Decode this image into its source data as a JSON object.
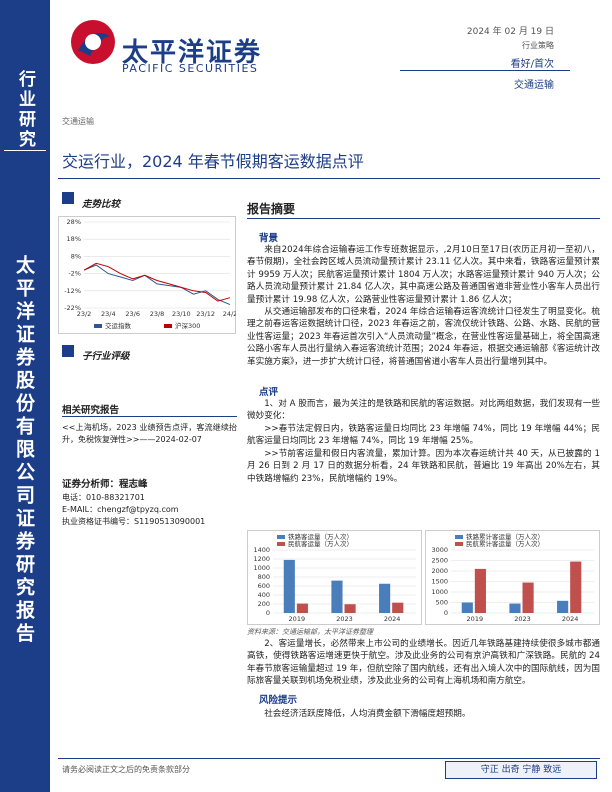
{
  "sidebar": {
    "category": "行业研究",
    "company": "太平洋证券股份有限公司证券研究报告"
  },
  "header": {
    "logo_cn": "太平洋证券",
    "logo_en": "PACIFIC SECURITIES",
    "date": "2024 年 02 月 19 日",
    "report_type": "行业策略",
    "rating": "看好/首次",
    "industry": "交通运输"
  },
  "section_tag": "交通运输",
  "title": "交运行业，2024 年春节假期客运数据点评",
  "left": {
    "trend_title": "走势比较",
    "sub_rating_title": "子行业评级",
    "related_title": "相关研究报告",
    "related": "<<上海机场，2023 业绩预告点评，客流继续抬升，免税恢复弹性>>——2024-02-07",
    "analyst": "证券分析师：程志峰",
    "phone": "电话：010-88321701",
    "email": "E-MAIL：chengzf@tpyzq.com",
    "cert": "执业资格证书编号：S1190513090001"
  },
  "summary": {
    "title": "报告摘要",
    "sections": [
      {
        "heading": "背景",
        "paragraphs": [
          "来自2024年综合运输春运工作专班数据显示，,2月10日至17日(农历正月初一至初八，春节假期)，全社会跨区域人员流动量预计累计 23.11 亿人次。其中来看，铁路客运量预计累计 9959 万人次；民航客运量预计累计 1804 万人次；水路客运量预计累计 940 万人次；公路人员流动量预计累计 21.84 亿人次，其中高速公路及普通国省道非营业性小客车人员出行量预计累计 19.98 亿人次，公路营业性客运量预计累计 1.86 亿人次；",
          "从交通运输部发布的口径来看，2024 年综合运输春运客流统计口径发生了明显变化。梳理之前春运客运数据统计口径，2023 年春运之前，客流仅统计铁路、公路、水路、民航的营业性客运量；2023 年春运首次引入“人员流动量”概念，在营业性客运量基础上，将全国高速公路小客车人员出行量纳入春运客流统计范围；2024 年春运，根据交通运输部《客运统计改革实施方案》，进一步扩大统计口径，将普通国省道小客车人员出行量增列其中。"
        ]
      },
      {
        "heading": "点评",
        "paragraphs": [
          "1、对 A 股而言，最为关注的是铁路和民航的客运数据。对比两组数据，我们发现有一些微妙变化：",
          ">>春节法定假日内，铁路客运量日均同比 23 年增幅 74%，同比 19 年增幅 44%；民航客运量日均同比 23 年增幅 74%，同比 19 年增幅 25%。",
          ">>节前客运量和假日内客流量，累加计算。因为本次春运统计共 40 天，从已披露的 1 月 26 日到 2 月 17 日的数据分析看，24 年铁路和民航，普遍比 19 年高出 20%左右，其中铁路增幅约 23%，民航增幅约 19%。"
        ]
      },
      {
        "caption": "资料来源：交通运输部，太平洋证券整理",
        "paragraphs": [
          "2、客运量增长，必然带来上市公司的业绩增长。因近几年铁路基建持续使很多城市都通高铁，使得铁路客运增速更快于航空。涉及此业务的公司有京沪高铁和广深铁路。民航的 24 年春节旅客运输量超过 19 年，但航空除了国内航线，还有出入境人次中的国际航线，因为国际旅客量关联到机场免税业绩，涉及此业务的公司有上海机场和南方航空。"
        ]
      },
      {
        "heading": "风险提示",
        "paragraphs": [
          "社会经济活跃度降低，人均消费金额下滑幅度超预期。"
        ]
      }
    ]
  },
  "figures": [
    {
      "type": "line",
      "legend": "bottom",
      "categories": [
        "23/2",
        null,
        "23/4",
        null,
        "23/6",
        null,
        "23/8",
        null,
        "23/10",
        null,
        "23/12",
        null,
        "24/2"
      ],
      "series": [
        {
          "name": "交运指数",
          "color": "#2f5597",
          "values": [
            0,
            3,
            -2,
            -4,
            -6,
            -3,
            -8,
            -9,
            -10,
            -14,
            -12,
            -17,
            -20
          ]
        },
        {
          "name": "沪深300",
          "color": "#c00000",
          "values": [
            0,
            4,
            2,
            -2,
            -5,
            -3,
            -6,
            -8,
            -10,
            -12,
            -13,
            -18,
            -16
          ]
        }
      ],
      "ylim": [
        -22,
        28
      ],
      "yticks": [
        {
          "value": -22,
          "label": "-22%"
        },
        {
          "value": -12,
          "label": "-12%"
        },
        {
          "value": -2,
          "label": "-2%"
        },
        {
          "value": 8,
          "label": "8%"
        },
        {
          "value": 18,
          "label": "18%"
        },
        {
          "value": 28,
          "label": "28%"
        }
      ],
      "grid": true
    },
    {
      "type": "bar",
      "legend": "top",
      "categories": [
        "2019",
        "2023",
        "2024"
      ],
      "series": [
        {
          "name": "铁路客运量（万人次）",
          "color": "#4a7ebb",
          "values": [
            1180,
            720,
            650
          ]
        },
        {
          "name": "民航客运量（万人次）",
          "color": "#c0504d",
          "values": [
            210,
            195,
            230
          ]
        }
      ],
      "ylim": [
        0,
        1400
      ],
      "yticks": [
        0,
        200,
        400,
        600,
        800,
        1000,
        1200,
        1400
      ],
      "grid": true
    },
    {
      "type": "bar",
      "legend": "top",
      "categories": [
        "2019",
        "2023",
        "2024"
      ],
      "series": [
        {
          "name": "铁路累计客运量（万人次）",
          "color": "#4a7ebb",
          "values": [
            500,
            450,
            580
          ]
        },
        {
          "name": "民航累计客运量（万人次）",
          "color": "#c0504d",
          "values": [
            2100,
            1450,
            2450
          ]
        }
      ],
      "ylim": [
        0,
        3000
      ],
      "yticks": [
        0,
        500,
        1000,
        1500,
        2000,
        2500,
        3000
      ],
      "grid": true
    }
  ],
  "footer": {
    "disclaimer": "请务必阅读正文之后的免责条款部分",
    "motto": "守正 出奇 宁静 致远"
  }
}
